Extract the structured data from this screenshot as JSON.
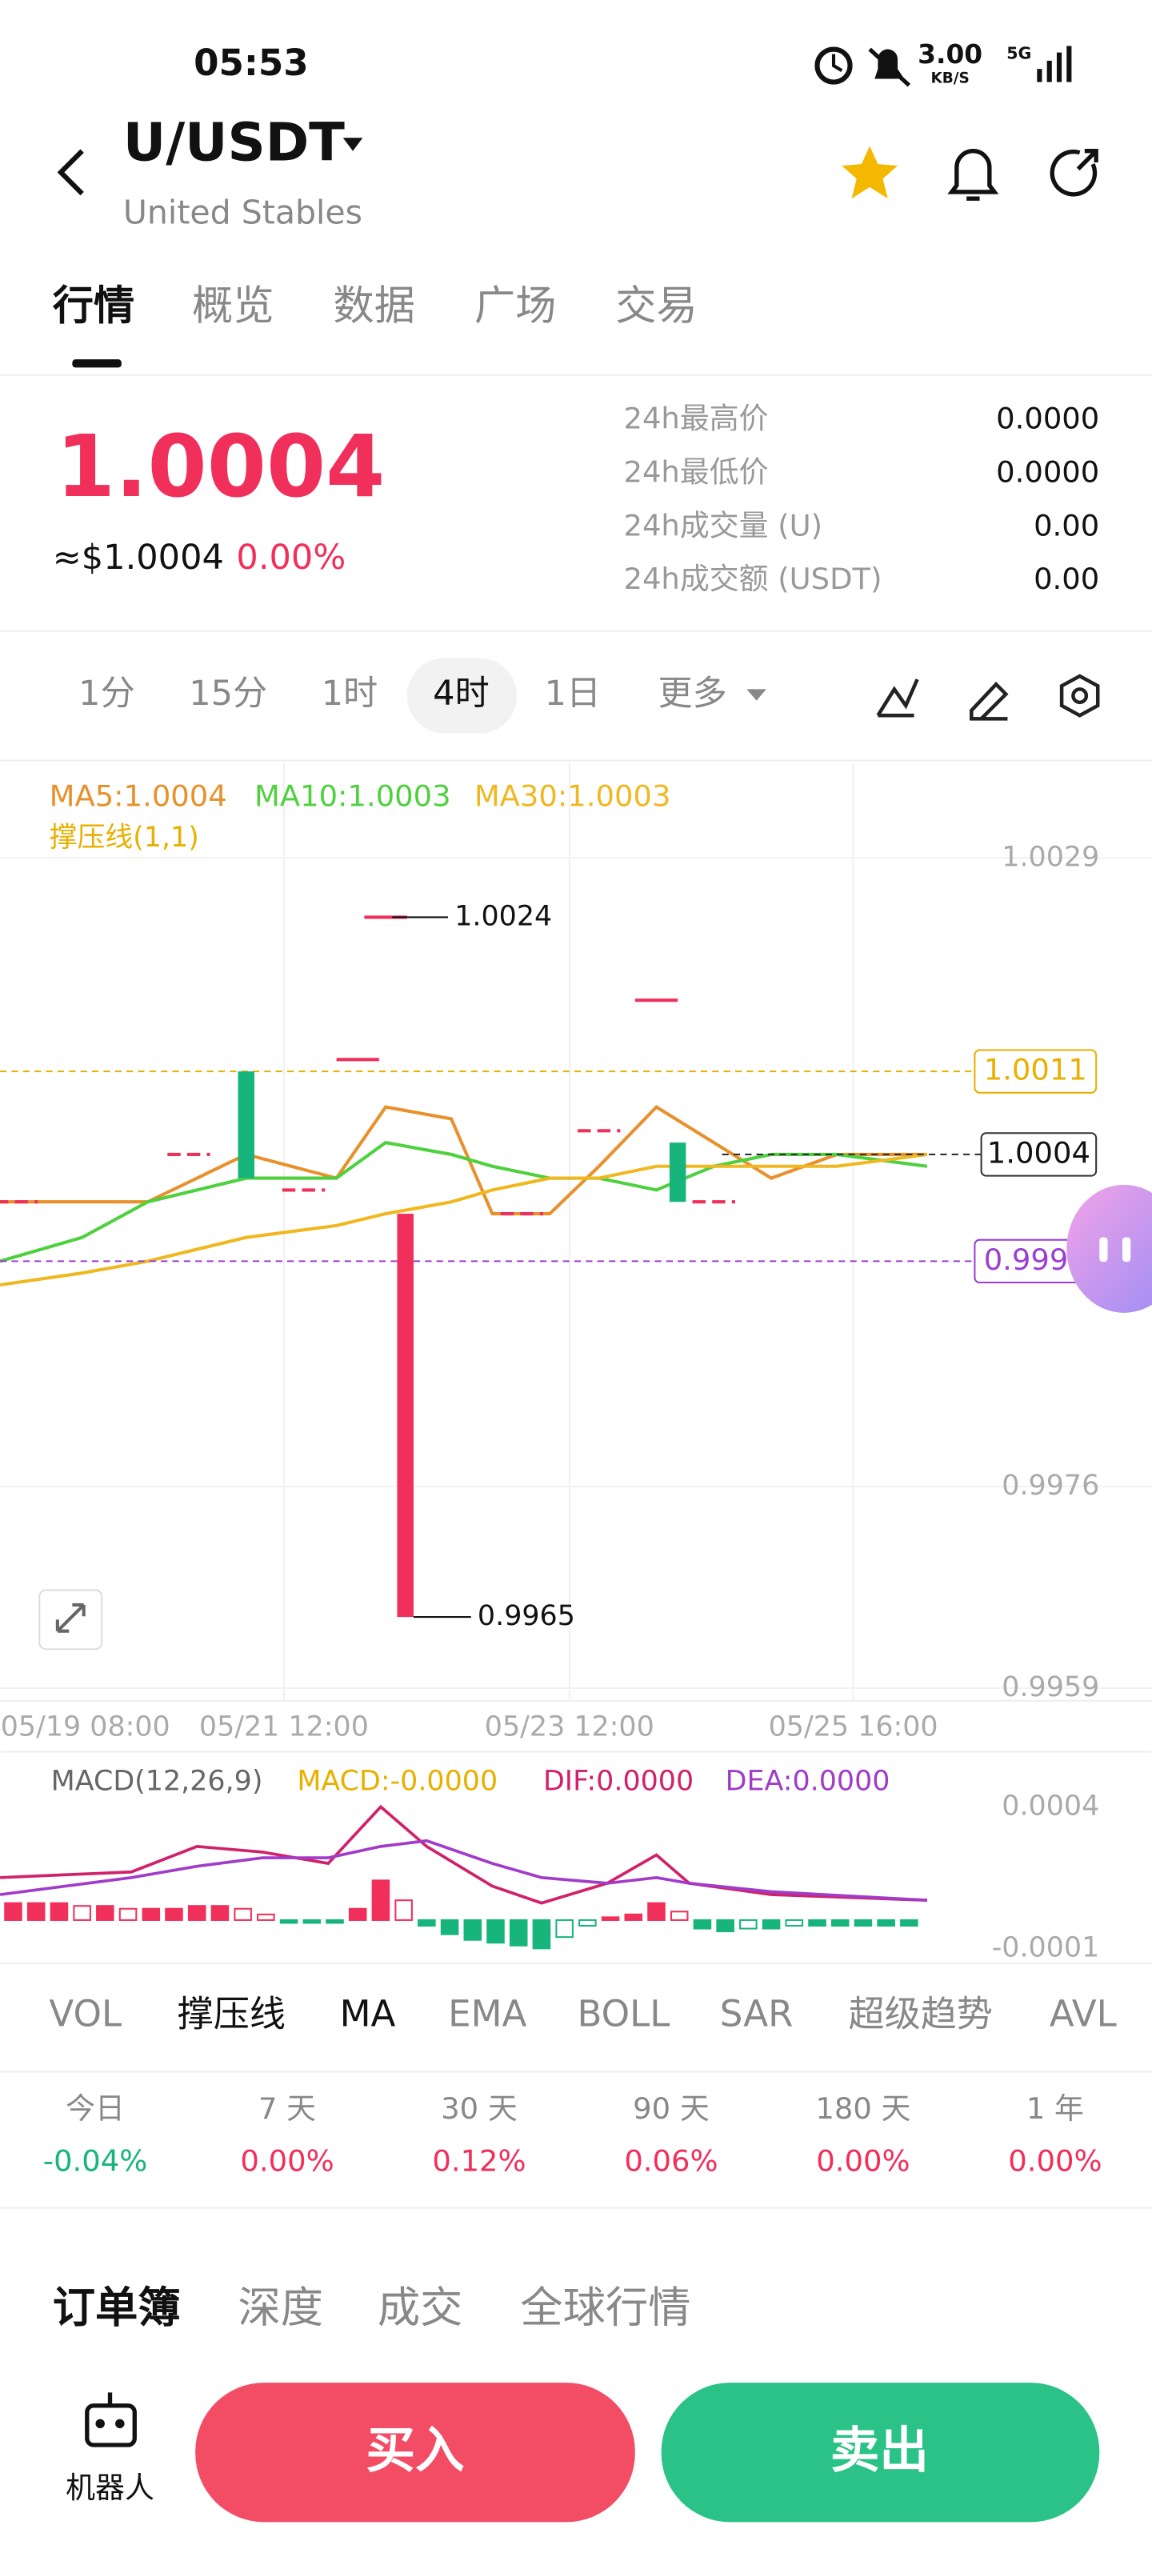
{
  "status_bar": {
    "time": "05:53",
    "speed": "3.00",
    "speed_unit": "KB/S",
    "network": "5G"
  },
  "header": {
    "pair": "U/USDT",
    "name": "United Stables"
  },
  "tabs": [
    "行情",
    "概览",
    "数据",
    "广场",
    "交易"
  ],
  "price": {
    "last": "1.0004",
    "usd": "≈$1.0004",
    "change": "0.00%"
  },
  "stats": [
    {
      "label": "24h最高价",
      "value": "0.0000"
    },
    {
      "label": "24h最低价",
      "value": "0.0000"
    },
    {
      "label": "24h成交量 (U)",
      "value": "0.00"
    },
    {
      "label": "24h成交额 (USDT)",
      "value": "0.00"
    }
  ],
  "intervals": [
    "1分",
    "15分",
    "1时",
    "4时",
    "1日",
    "更多"
  ],
  "chart_data": [
    {
      "type": "candlestick",
      "sr_label": "撑压线(1,1)",
      "up_color": "#f0305a",
      "down_color": "#17b57c",
      "ylim": [
        0.9958,
        1.0037
      ],
      "yticks": [
        1.0029,
        0.9976,
        0.9959
      ],
      "grid": true,
      "x_labels": [
        "05/19 08:00",
        "05/21 12:00",
        "05/23 12:00",
        "05/25 16:00"
      ],
      "candles": [
        {
          "open": 1.0,
          "high": 1.0,
          "low": 1.0,
          "close": 1.0
        },
        {
          "open": 1.0004,
          "high": 1.0004,
          "low": 1.0004,
          "close": 1.0004
        },
        {
          "open": 1.0011,
          "high": 1.0011,
          "low": 1.0002,
          "close": 1.0002
        },
        {
          "open": 1.0001,
          "high": 1.0001,
          "low": 1.0001,
          "close": 1.0001
        },
        {
          "open": 1.0012,
          "high": 1.0012,
          "low": 1.0012,
          "close": 1.0012
        },
        {
          "open": 1.0024,
          "high": 1.0024,
          "low": 1.0024,
          "close": 1.0024
        },
        {
          "open": 0.9965,
          "high": 0.9999,
          "low": 0.9965,
          "close": 0.9999
        },
        {
          "open": 0.9999,
          "high": 0.9999,
          "low": 0.9999,
          "close": 0.9999
        },
        {
          "open": 1.0006,
          "high": 1.0006,
          "low": 1.0006,
          "close": 1.0006
        },
        {
          "open": 1.0017,
          "high": 1.0017,
          "low": 1.0017,
          "close": 1.0017
        },
        {
          "open": 1.0005,
          "high": 1.0005,
          "low": 1.0,
          "close": 1.0
        },
        {
          "open": 1.0,
          "high": 1.0,
          "low": 1.0,
          "close": 1.0
        }
      ],
      "series": [
        {
          "name": "MA5:1.0004",
          "color": "#e8912c",
          "values": [
            1.0,
            1.0,
            1.0,
            1.0004,
            1.0002,
            1.0008,
            1.0007,
            0.9999,
            0.9999,
            1.0003,
            1.0008,
            1.0005,
            1.0002,
            1.0004,
            1.0004
          ]
        },
        {
          "name": "MA10:1.0003",
          "color": "#4fd13f",
          "values": [
            0.9995,
            0.9997,
            1.0,
            1.0002,
            1.0002,
            1.0005,
            1.0004,
            1.0003,
            1.0002,
            1.0002,
            1.0001,
            1.0003,
            1.0004,
            1.0004,
            1.0003
          ]
        },
        {
          "name": "MA30:1.0003",
          "color": "#f0b820",
          "values": [
            0.9993,
            0.9994,
            0.9995,
            0.9997,
            0.9998,
            0.9999,
            1.0,
            1.0001,
            1.0002,
            1.0002,
            1.0003,
            1.0003,
            1.0003,
            1.0003,
            1.0004
          ]
        }
      ],
      "levels": [
        {
          "value": 1.0011,
          "color": "#e8b000"
        },
        {
          "value": 0.9995,
          "color": "#9b3fcf"
        }
      ],
      "current_price": 1.0004
    },
    {
      "type": "macd",
      "title": "MACD(12,26,9)",
      "ylim": [
        -0.00015,
        0.00058
      ],
      "yticks": [
        0.0004,
        -0.0001
      ],
      "up_color": "#f0305a",
      "down_color": "#17b57c",
      "series": [
        {
          "name": "MACD:-0.0000",
          "color": "#e8b000",
          "values": [
            6e-05,
            6e-05,
            6e-05,
            5e-05,
            5e-05,
            4e-05,
            4e-05,
            4e-05,
            5e-05,
            5e-05,
            4e-05,
            2e-05,
            -1e-05,
            -1e-05,
            -1e-05,
            4e-05,
            0.00014,
            7e-05,
            -2e-05,
            -5e-05,
            -7e-05,
            -8e-05,
            -9e-05,
            -0.0001,
            -6e-05,
            -2e-05,
            1e-05,
            2e-05,
            6e-05,
            3e-05,
            -3e-05,
            -4e-05,
            -3e-05,
            -3e-05,
            -2e-05,
            -2e-05,
            -2e-05,
            -2e-05,
            -2e-05,
            -2e-05
          ]
        },
        {
          "name": "DIF:0.0000",
          "color": "#d0216a",
          "values": [
            0.00015,
            0.00016,
            0.00017,
            0.00026,
            0.00024,
            0.0002,
            0.0004,
            0.00026,
            0.00012,
            6e-05,
            0.00013,
            0.00023,
            0.00013,
            9e-05,
            7e-05
          ]
        },
        {
          "name": "DEA:0.0000",
          "color": "#a03cc8",
          "values": [
            9e-05,
            0.00012,
            0.00015,
            0.00019,
            0.00022,
            0.00022,
            0.00026,
            0.00028,
            0.0002,
            0.00015,
            0.00013,
            0.00015,
            0.00013,
            0.0001,
            7e-05
          ]
        }
      ]
    }
  ],
  "indicators": [
    "VOL",
    "撑压线",
    "MA",
    "EMA",
    "BOLL",
    "SAR",
    "超级趋势",
    "AVL"
  ],
  "performance": [
    {
      "period": "今日",
      "change": "-0.04%"
    },
    {
      "period": "7 天",
      "change": "0.00%"
    },
    {
      "period": "30 天",
      "change": "0.12%"
    },
    {
      "period": "90 天",
      "change": "0.06%"
    },
    {
      "period": "180 天",
      "change": "0.00%"
    },
    {
      "period": "1 年",
      "change": "0.00%"
    }
  ],
  "book_tabs": [
    "订单簿",
    "深度",
    "成交",
    "全球行情"
  ],
  "actions": {
    "robot": "机器人",
    "buy": "买入",
    "sell": "卖出"
  }
}
